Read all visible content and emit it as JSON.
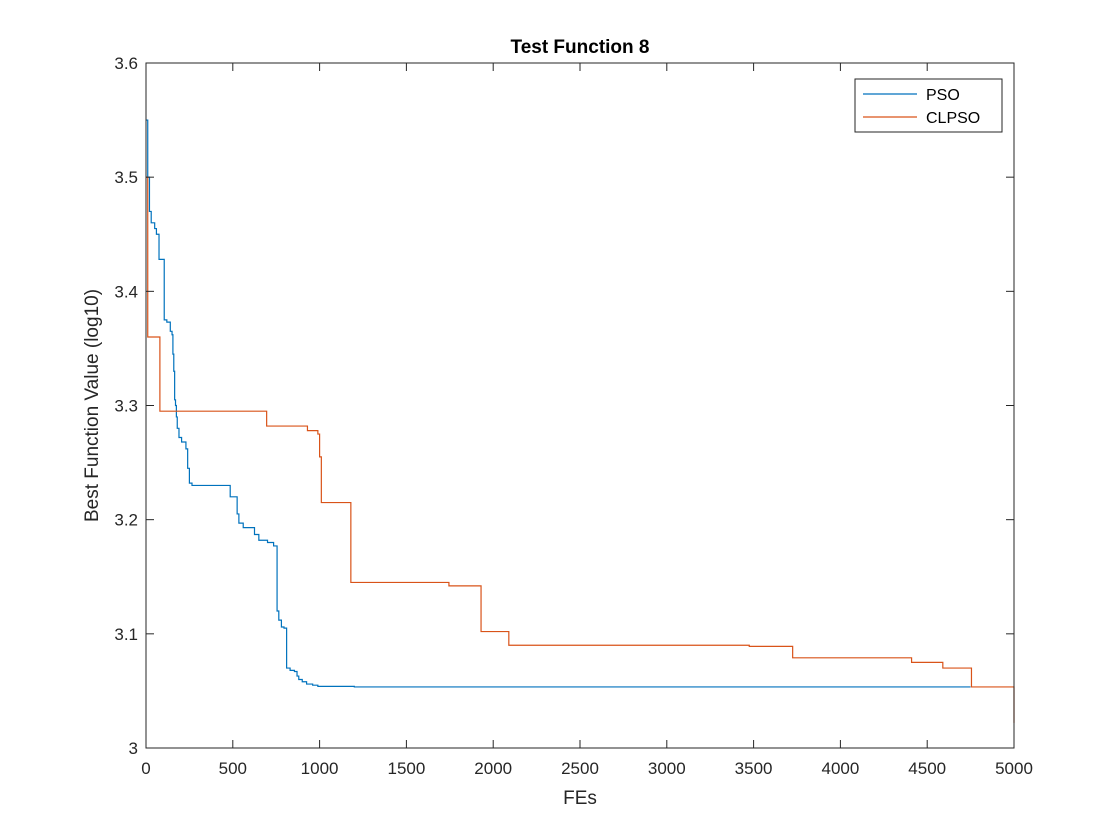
{
  "chart_data": {
    "type": "line",
    "title": "Test Function 8",
    "xlabel": "FEs",
    "ylabel": "Best Function Value (log10)",
    "xlim": [
      0,
      5000
    ],
    "ylim": [
      3.0,
      3.6
    ],
    "xticks": [
      0,
      500,
      1000,
      1500,
      2000,
      2500,
      3000,
      3500,
      4000,
      4500,
      5000
    ],
    "yticks": [
      3.0,
      3.1,
      3.2,
      3.3,
      3.4,
      3.5,
      3.6
    ],
    "xtick_labels": [
      "0",
      "500",
      "1000",
      "1500",
      "2000",
      "2500",
      "3000",
      "3500",
      "4000",
      "4500",
      "5000"
    ],
    "ytick_labels": [
      "3",
      "3.1",
      "3.2",
      "3.3",
      "3.4",
      "3.5",
      "3.6"
    ],
    "grid": false,
    "legend_position": "top-right",
    "series": [
      {
        "name": "PSO",
        "color": "#0072BD",
        "step": true,
        "points": [
          [
            0,
            3.55
          ],
          [
            10,
            3.5
          ],
          [
            20,
            3.47
          ],
          [
            30,
            3.46
          ],
          [
            50,
            3.455
          ],
          [
            60,
            3.45
          ],
          [
            75,
            3.428
          ],
          [
            100,
            3.428
          ],
          [
            105,
            3.375
          ],
          [
            120,
            3.373
          ],
          [
            135,
            3.373
          ],
          [
            140,
            3.365
          ],
          [
            150,
            3.362
          ],
          [
            155,
            3.345
          ],
          [
            160,
            3.33
          ],
          [
            165,
            3.305
          ],
          [
            170,
            3.3
          ],
          [
            175,
            3.29
          ],
          [
            180,
            3.28
          ],
          [
            190,
            3.272
          ],
          [
            205,
            3.268
          ],
          [
            230,
            3.262
          ],
          [
            240,
            3.245
          ],
          [
            250,
            3.232
          ],
          [
            265,
            3.23
          ],
          [
            480,
            3.23
          ],
          [
            485,
            3.22
          ],
          [
            520,
            3.22
          ],
          [
            525,
            3.205
          ],
          [
            535,
            3.197
          ],
          [
            560,
            3.193
          ],
          [
            625,
            3.187
          ],
          [
            650,
            3.182
          ],
          [
            700,
            3.18
          ],
          [
            735,
            3.177
          ],
          [
            750,
            3.177
          ],
          [
            755,
            3.12
          ],
          [
            765,
            3.112
          ],
          [
            780,
            3.106
          ],
          [
            795,
            3.105
          ],
          [
            810,
            3.07
          ],
          [
            830,
            3.068
          ],
          [
            855,
            3.067
          ],
          [
            870,
            3.063
          ],
          [
            880,
            3.06
          ],
          [
            900,
            3.058
          ],
          [
            925,
            3.056
          ],
          [
            960,
            3.055
          ],
          [
            990,
            3.054
          ],
          [
            1100,
            3.054
          ],
          [
            1200,
            3.0535
          ],
          [
            4750,
            3.0535
          ]
        ]
      },
      {
        "name": "CLPSO",
        "color": "#D95319",
        "step": true,
        "points": [
          [
            0,
            3.5
          ],
          [
            10,
            3.36
          ],
          [
            75,
            3.36
          ],
          [
            80,
            3.295
          ],
          [
            690,
            3.295
          ],
          [
            695,
            3.282
          ],
          [
            925,
            3.282
          ],
          [
            930,
            3.278
          ],
          [
            985,
            3.278
          ],
          [
            990,
            3.275
          ],
          [
            1000,
            3.275
          ],
          [
            1000,
            3.255
          ],
          [
            1005,
            3.255
          ],
          [
            1010,
            3.215
          ],
          [
            1175,
            3.215
          ],
          [
            1180,
            3.145
          ],
          [
            1740,
            3.145
          ],
          [
            1745,
            3.142
          ],
          [
            1925,
            3.142
          ],
          [
            1930,
            3.102
          ],
          [
            2085,
            3.102
          ],
          [
            2090,
            3.09
          ],
          [
            3470,
            3.09
          ],
          [
            3475,
            3.089
          ],
          [
            3720,
            3.089
          ],
          [
            3725,
            3.079
          ],
          [
            4400,
            3.079
          ],
          [
            4410,
            3.075
          ],
          [
            4580,
            3.075
          ],
          [
            4590,
            3.07
          ],
          [
            4750,
            3.07
          ],
          [
            4755,
            3.0535
          ],
          [
            4995,
            3.0535
          ],
          [
            5000,
            3.022
          ]
        ]
      }
    ]
  }
}
